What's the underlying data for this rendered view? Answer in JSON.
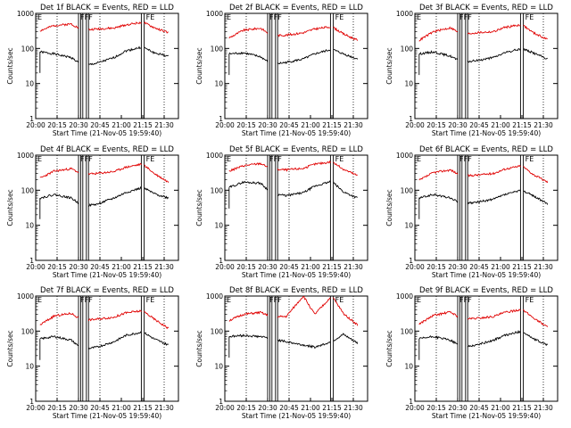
{
  "figure": {
    "time_ticks": [
      "20:00",
      "20:15",
      "20:30",
      "20:45",
      "21:00",
      "21:15",
      "21:30"
    ],
    "ylabel": "Counts/sec",
    "xlabel": "Start Time (21-Nov-05 19:59:40)",
    "y_ticks": [
      "1",
      "10",
      "100",
      "1000"
    ],
    "colors": {
      "events": "#000000",
      "lld": "#e00000",
      "frame": "#000000"
    }
  },
  "chart_data": [
    {
      "type": "line",
      "title": "Det 1f BLACK = Events, RED = LLD",
      "ylim": [
        1,
        1000
      ],
      "yscale": "log",
      "xlim": [
        "20:00",
        "21:40"
      ],
      "marker_labels": [
        "F",
        "E"
      ],
      "series": [
        {
          "key": "events",
          "x_min": [
            3,
            13,
            25,
            33,
            43,
            55,
            63,
            75,
            83,
            93
          ],
          "values": [
            80,
            70,
            55,
            32,
            38,
            55,
            85,
            110,
            75,
            60
          ]
        },
        {
          "key": "lld",
          "x_min": [
            3,
            13,
            25,
            33,
            43,
            55,
            63,
            75,
            83,
            93
          ],
          "values": [
            320,
            450,
            500,
            330,
            360,
            380,
            470,
            560,
            390,
            280
          ]
        }
      ]
    },
    {
      "type": "line",
      "title": "Det 2f BLACK = Events, RED = LLD",
      "ylim": [
        1,
        1000
      ],
      "yscale": "log",
      "xlim": [
        "20:00",
        "21:40"
      ],
      "marker_labels": [
        "F",
        "E"
      ],
      "series": [
        {
          "key": "events",
          "x_min": [
            3,
            13,
            25,
            33,
            43,
            55,
            63,
            75,
            83,
            93
          ],
          "values": [
            70,
            75,
            58,
            35,
            40,
            50,
            70,
            95,
            70,
            50
          ]
        },
        {
          "key": "lld",
          "x_min": [
            3,
            13,
            25,
            33,
            43,
            55,
            63,
            75,
            83,
            93
          ],
          "values": [
            200,
            330,
            380,
            230,
            240,
            280,
            360,
            420,
            260,
            170
          ]
        }
      ]
    },
    {
      "type": "line",
      "title": "Det 3f BLACK = Events, RED = LLD",
      "ylim": [
        1,
        1000
      ],
      "yscale": "log",
      "xlim": [
        "20:00",
        "21:40"
      ],
      "marker_labels": [
        "F",
        "E"
      ],
      "series": [
        {
          "key": "events",
          "x_min": [
            3,
            13,
            25,
            33,
            43,
            55,
            63,
            75,
            83,
            93
          ],
          "values": [
            70,
            80,
            60,
            40,
            45,
            55,
            75,
            100,
            75,
            50
          ]
        },
        {
          "key": "lld",
          "x_min": [
            3,
            13,
            25,
            33,
            43,
            55,
            63,
            75,
            83,
            93
          ],
          "values": [
            170,
            300,
            390,
            250,
            280,
            300,
            400,
            480,
            280,
            180
          ]
        }
      ]
    },
    {
      "type": "line",
      "title": "Det 4f BLACK = Events, RED = LLD",
      "ylim": [
        1,
        1000
      ],
      "yscale": "log",
      "xlim": [
        "20:00",
        "21:40"
      ],
      "marker_labels": [
        "F",
        "E"
      ],
      "series": [
        {
          "key": "events",
          "x_min": [
            3,
            13,
            25,
            33,
            43,
            55,
            63,
            75,
            83,
            93
          ],
          "values": [
            60,
            75,
            60,
            35,
            40,
            60,
            85,
            120,
            80,
            60
          ]
        },
        {
          "key": "lld",
          "x_min": [
            3,
            13,
            25,
            33,
            43,
            55,
            63,
            75,
            83,
            93
          ],
          "values": [
            220,
            350,
            410,
            280,
            300,
            340,
            450,
            560,
            300,
            170
          ]
        }
      ]
    },
    {
      "type": "line",
      "title": "Det 5f BLACK = Events, RED = LLD",
      "ylim": [
        1,
        1000
      ],
      "yscale": "log",
      "xlim": [
        "20:00",
        "21:40"
      ],
      "marker_labels": [
        "F",
        "E"
      ],
      "series": [
        {
          "key": "events",
          "x_min": [
            3,
            13,
            25,
            33,
            43,
            55,
            63,
            75,
            83,
            93
          ],
          "values": [
            120,
            170,
            160,
            80,
            70,
            85,
            130,
            180,
            90,
            60
          ]
        },
        {
          "key": "lld",
          "x_min": [
            3,
            13,
            25,
            33,
            43,
            55,
            63,
            75,
            83,
            93
          ],
          "values": [
            350,
            500,
            580,
            400,
            380,
            420,
            550,
            650,
            400,
            260
          ]
        }
      ]
    },
    {
      "type": "line",
      "title": "Det 6f BLACK = Events, RED = LLD",
      "ylim": [
        1,
        1000
      ],
      "yscale": "log",
      "xlim": [
        "20:00",
        "21:40"
      ],
      "marker_labels": [
        "F",
        "E"
      ],
      "series": [
        {
          "key": "events",
          "x_min": [
            3,
            13,
            25,
            33,
            43,
            55,
            63,
            75,
            83,
            93
          ],
          "values": [
            60,
            75,
            60,
            40,
            45,
            55,
            75,
            100,
            70,
            40
          ]
        },
        {
          "key": "lld",
          "x_min": [
            3,
            13,
            25,
            33,
            43,
            55,
            63,
            75,
            83,
            93
          ],
          "values": [
            190,
            320,
            380,
            250,
            270,
            300,
            400,
            500,
            280,
            170
          ]
        }
      ]
    },
    {
      "type": "line",
      "title": "Det 7f BLACK = Events, RED = LLD",
      "ylim": [
        1,
        1000
      ],
      "yscale": "log",
      "xlim": [
        "20:00",
        "21:40"
      ],
      "marker_labels": [
        "F",
        "E"
      ],
      "series": [
        {
          "key": "events",
          "x_min": [
            3,
            13,
            25,
            33,
            43,
            55,
            63,
            75,
            83,
            93
          ],
          "values": [
            60,
            70,
            55,
            30,
            35,
            50,
            75,
            95,
            60,
            40
          ]
        },
        {
          "key": "lld",
          "x_min": [
            3,
            13,
            25,
            33,
            43,
            55,
            63,
            75,
            83,
            93
          ],
          "values": [
            150,
            270,
            320,
            200,
            220,
            250,
            330,
            380,
            220,
            120
          ]
        }
      ]
    },
    {
      "type": "line",
      "title": "Det 8f BLACK = Events, RED = LLD",
      "ylim": [
        1,
        1000
      ],
      "yscale": "log",
      "xlim": [
        "20:00",
        "21:40"
      ],
      "marker_labels": [
        "F",
        "E"
      ],
      "series": [
        {
          "key": "events",
          "x_min": [
            3,
            13,
            25,
            33,
            43,
            55,
            63,
            75,
            83,
            93
          ],
          "values": [
            70,
            75,
            70,
            60,
            50,
            40,
            35,
            50,
            80,
            45
          ]
        },
        {
          "key": "lld",
          "x_min": [
            3,
            13,
            25,
            33,
            43,
            55,
            63,
            75,
            83,
            93
          ],
          "values": [
            200,
            300,
            340,
            250,
            260,
            1000,
            300,
            1000,
            320,
            150
          ]
        }
      ]
    },
    {
      "type": "line",
      "title": "Det 9f BLACK = Events, RED = LLD",
      "ylim": [
        1,
        1000
      ],
      "yscale": "log",
      "xlim": [
        "20:00",
        "21:40"
      ],
      "marker_labels": [
        "F",
        "E"
      ],
      "series": [
        {
          "key": "events",
          "x_min": [
            3,
            13,
            25,
            33,
            43,
            55,
            63,
            75,
            83,
            93
          ],
          "values": [
            60,
            70,
            55,
            35,
            40,
            55,
            75,
            100,
            60,
            40
          ]
        },
        {
          "key": "lld",
          "x_min": [
            3,
            13,
            25,
            33,
            43,
            55,
            63,
            75,
            83,
            93
          ],
          "values": [
            160,
            280,
            350,
            220,
            230,
            260,
            340,
            420,
            240,
            130
          ]
        }
      ]
    }
  ]
}
